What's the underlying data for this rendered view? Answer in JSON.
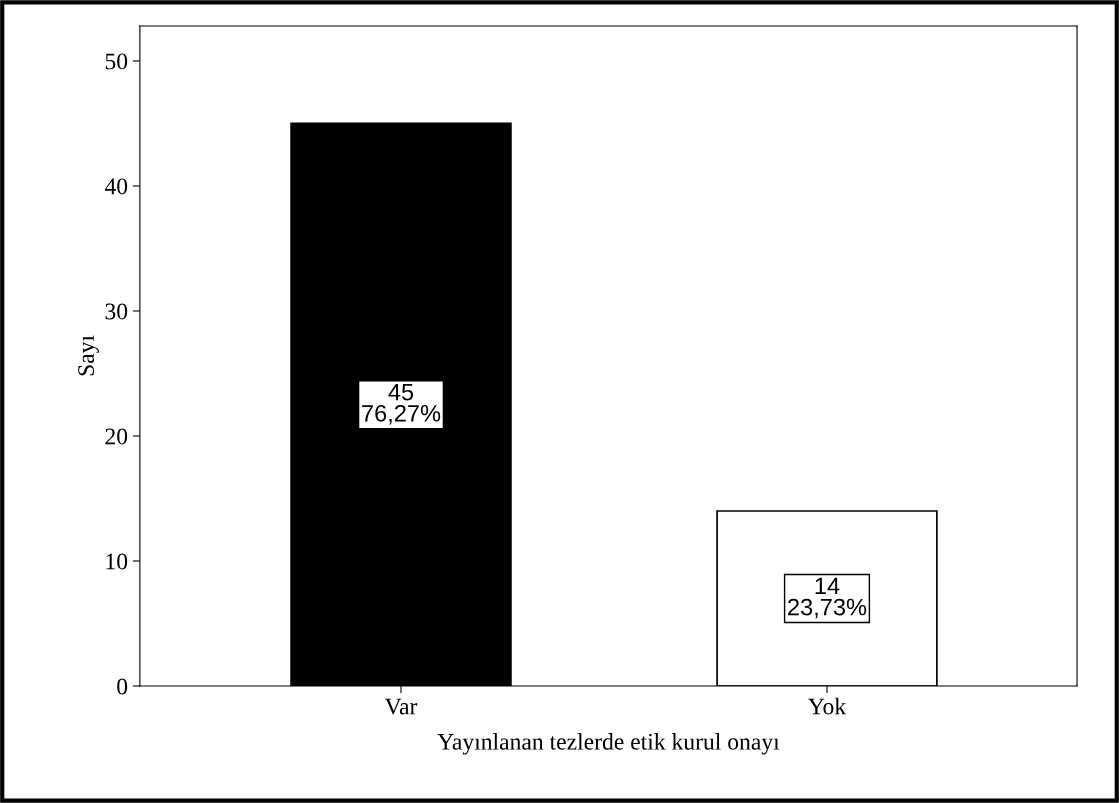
{
  "chart_data": {
    "type": "bar",
    "xlabel": "Yayınlanan tezlerde etik kurul onayı",
    "ylabel": "Sayı",
    "categories": [
      "Var",
      "Yok"
    ],
    "values": [
      45,
      14
    ],
    "colors": [
      "#000000",
      "#ffffff"
    ],
    "value_labels": [
      "45\n76,27%",
      "14\n23,73%"
    ],
    "ylim": [
      0,
      52.8
    ],
    "yticks": [
      0,
      10,
      20,
      30,
      40,
      50
    ],
    "grid": false,
    "legend": false
  }
}
